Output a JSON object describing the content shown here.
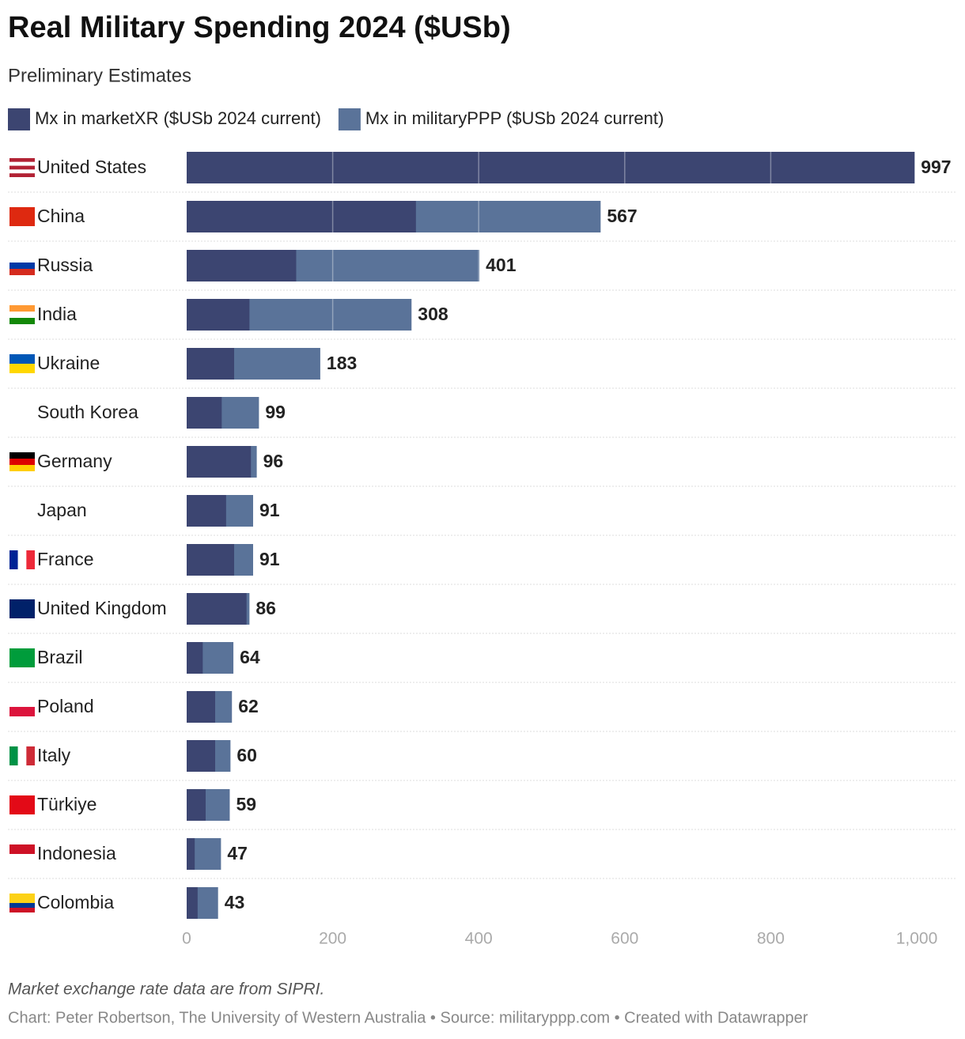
{
  "chart_data": {
    "type": "bar",
    "title": "Real Military Spending 2024 ($USb)",
    "subtitle": "Preliminary Estimates",
    "note": "Market exchange rate data are from SIPRI.",
    "footer": "Chart: Peter Robertson, The University of Western Australia • Source: militaryppp.com • Created with Datawrapper",
    "categories": [
      "United States",
      "China",
      "Russia",
      "India",
      "Ukraine",
      "South Korea",
      "Germany",
      "Japan",
      "France",
      "United Kingdom",
      "Brazil",
      "Poland",
      "Italy",
      "Türkiye",
      "Indonesia",
      "Colombia"
    ],
    "series": [
      {
        "name": "Mx in marketXR ($USb 2024 current)",
        "color": "#3c4571",
        "values": [
          997,
          314,
          150,
          86,
          65,
          48,
          88,
          54,
          65,
          82,
          22,
          39,
          39,
          26,
          11,
          15
        ]
      },
      {
        "name": "Mx in militaryPPP ($USb 2024 current)",
        "color": "#5a7399",
        "values": [
          997,
          567,
          401,
          308,
          183,
          99,
          96,
          91,
          91,
          86,
          64,
          62,
          60,
          59,
          47,
          43
        ]
      }
    ],
    "xlim": [
      0,
      1000
    ],
    "xticks": [
      0,
      200,
      400,
      600,
      800,
      {
        "value": 1000,
        "label": "1,000"
      }
    ],
    "grid": true
  }
}
